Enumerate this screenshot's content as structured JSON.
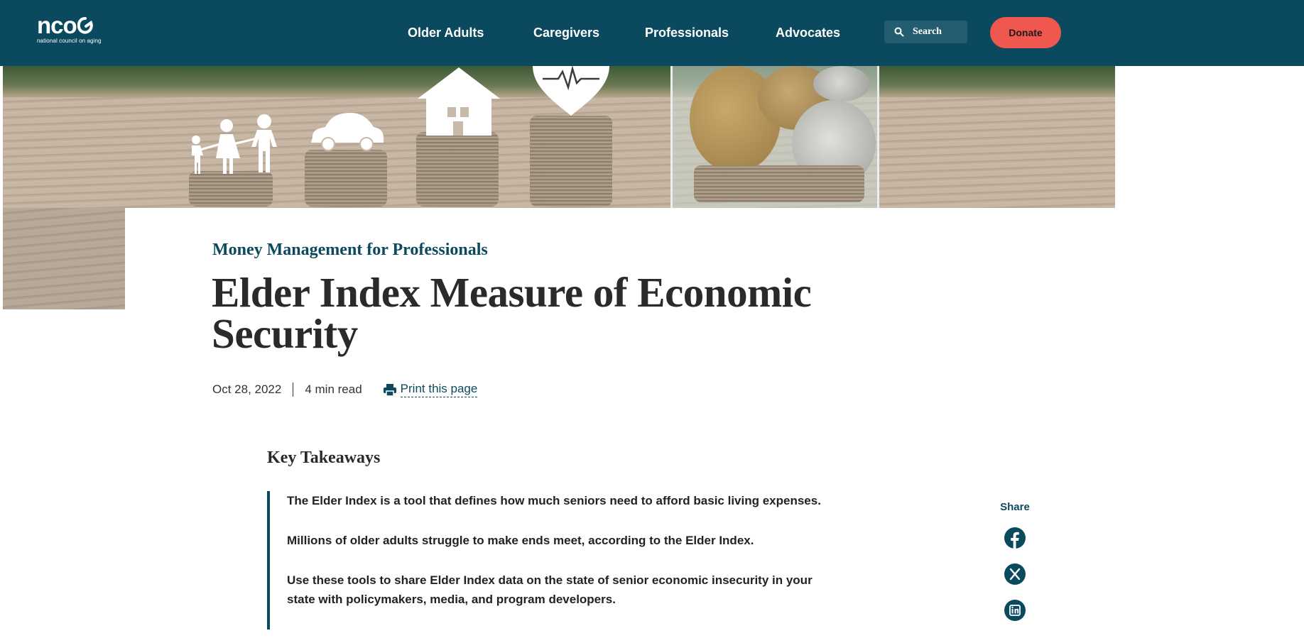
{
  "header": {
    "logo": {
      "mark": "nco",
      "subtitle": "national council on aging"
    },
    "nav": [
      {
        "label": "Older Adults"
      },
      {
        "label": "Caregivers"
      },
      {
        "label": "Professionals"
      },
      {
        "label": "Advocates"
      }
    ],
    "search_label": "Search",
    "donate_label": "Donate",
    "colors": {
      "header_bg": "#0b4a5e",
      "donate_bg": "#f0574e"
    }
  },
  "hero": {
    "image": "coin-stacks-with-family-car-house-heart-icons-and-coin-jar"
  },
  "article": {
    "category": "Money Management for Professionals",
    "title": "Elder Index Measure of Economic Security",
    "date": "Oct 28, 2022",
    "read_time": "4 min read",
    "print_label": "Print this page"
  },
  "key_takeaways": {
    "heading": "Key Takeaways",
    "items": [
      "The Elder Index is a tool that defines how much seniors need to afford basic living expenses.",
      "Millions of older adults struggle to make ends meet, according to the Elder Index.",
      "Use these tools to share Elder Index data on the state of senior economic insecurity in your state with policymakers, media, and program developers."
    ]
  },
  "share": {
    "label": "Share",
    "buttons": [
      "facebook-icon",
      "x-icon",
      "linkedin-icon"
    ]
  }
}
